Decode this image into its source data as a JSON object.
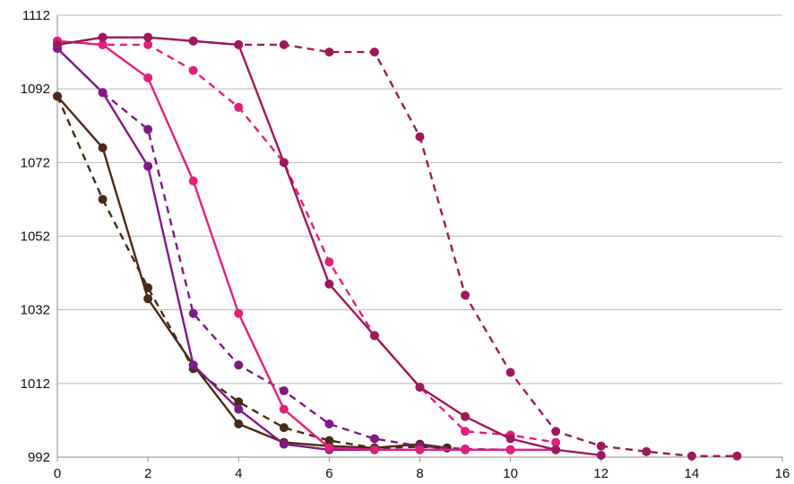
{
  "chart_data": {
    "type": "line",
    "title": "",
    "xlabel": "",
    "ylabel": "",
    "xlim": [
      0,
      16
    ],
    "ylim": [
      992,
      1112
    ],
    "xticks": [
      0,
      2,
      4,
      6,
      8,
      10,
      12,
      14,
      16
    ],
    "yticks": [
      992,
      1012,
      1032,
      1052,
      1072,
      1092,
      1112
    ],
    "grid": "horizontal",
    "legend": "none",
    "series": [
      {
        "color": "#4a2a16",
        "dashed": false,
        "points": [
          [
            0,
            1090
          ],
          [
            1,
            1076
          ],
          [
            2,
            1035
          ],
          [
            3,
            1017
          ],
          [
            4,
            1001
          ],
          [
            5,
            996
          ],
          [
            6,
            995
          ],
          [
            7,
            994.5
          ],
          [
            8,
            995.5
          ],
          [
            8.6,
            994.5
          ]
        ]
      },
      {
        "color": "#4a2a16",
        "dashed": true,
        "points": [
          [
            0,
            1090
          ],
          [
            1,
            1062
          ],
          [
            2,
            1038
          ],
          [
            3,
            1016
          ],
          [
            4,
            1007
          ],
          [
            5,
            1000
          ],
          [
            6,
            996.5
          ],
          [
            7,
            994.5
          ],
          [
            8,
            994.8
          ],
          [
            8.6,
            994.5
          ]
        ]
      },
      {
        "color": "#7e1a86",
        "dashed": false,
        "points": [
          [
            0,
            1103
          ],
          [
            1,
            1091
          ],
          [
            2,
            1071
          ],
          [
            3,
            1017
          ],
          [
            4,
            1005
          ],
          [
            5,
            995.5
          ],
          [
            6,
            994
          ],
          [
            7,
            994
          ],
          [
            8,
            994
          ],
          [
            9,
            994
          ],
          [
            10,
            994
          ]
        ]
      },
      {
        "color": "#7e1a86",
        "dashed": true,
        "points": [
          [
            0,
            1103
          ],
          [
            1,
            1091
          ],
          [
            2,
            1081
          ],
          [
            3,
            1031
          ],
          [
            4,
            1017
          ],
          [
            5,
            1010
          ],
          [
            6,
            1001
          ],
          [
            7,
            997
          ],
          [
            8,
            995
          ],
          [
            9,
            994.2
          ],
          [
            10,
            994
          ]
        ]
      },
      {
        "color": "#e0207a",
        "dashed": false,
        "points": [
          [
            0,
            1105
          ],
          [
            1,
            1104
          ],
          [
            2,
            1095
          ],
          [
            3,
            1067
          ],
          [
            4,
            1031
          ],
          [
            5,
            1005
          ],
          [
            6,
            994.5
          ],
          [
            7,
            994
          ],
          [
            8,
            994
          ],
          [
            9,
            994
          ],
          [
            10,
            994
          ],
          [
            11,
            994
          ]
        ]
      },
      {
        "color": "#e0207a",
        "dashed": true,
        "points": [
          [
            0,
            1105
          ],
          [
            1,
            1104
          ],
          [
            2,
            1104
          ],
          [
            3,
            1097
          ],
          [
            4,
            1087
          ],
          [
            5,
            1072
          ],
          [
            6,
            1045
          ],
          [
            7,
            1025
          ],
          [
            8,
            1011
          ],
          [
            9,
            999
          ],
          [
            10,
            998
          ],
          [
            11,
            996
          ]
        ]
      },
      {
        "color": "#9c1a5c",
        "dashed": false,
        "points": [
          [
            0,
            1104
          ],
          [
            1,
            1106
          ],
          [
            2,
            1106
          ],
          [
            3,
            1105
          ],
          [
            4,
            1104
          ],
          [
            5,
            1072
          ],
          [
            6,
            1039
          ],
          [
            7,
            1025
          ],
          [
            8,
            1011
          ],
          [
            9,
            1003
          ],
          [
            10,
            997
          ],
          [
            11,
            994
          ],
          [
            12,
            992.5
          ]
        ]
      },
      {
        "color": "#9c1a5c",
        "dashed": true,
        "points": [
          [
            0,
            1104
          ],
          [
            1,
            1106
          ],
          [
            2,
            1106
          ],
          [
            3,
            1105
          ],
          [
            4,
            1104
          ],
          [
            5,
            1104
          ],
          [
            6,
            1102
          ],
          [
            7,
            1102
          ],
          [
            8,
            1079
          ],
          [
            9,
            1036
          ],
          [
            10,
            1015
          ],
          [
            11,
            999
          ],
          [
            12,
            995
          ],
          [
            13,
            993.5
          ],
          [
            14,
            992.3
          ],
          [
            15,
            992.3
          ]
        ]
      }
    ]
  }
}
